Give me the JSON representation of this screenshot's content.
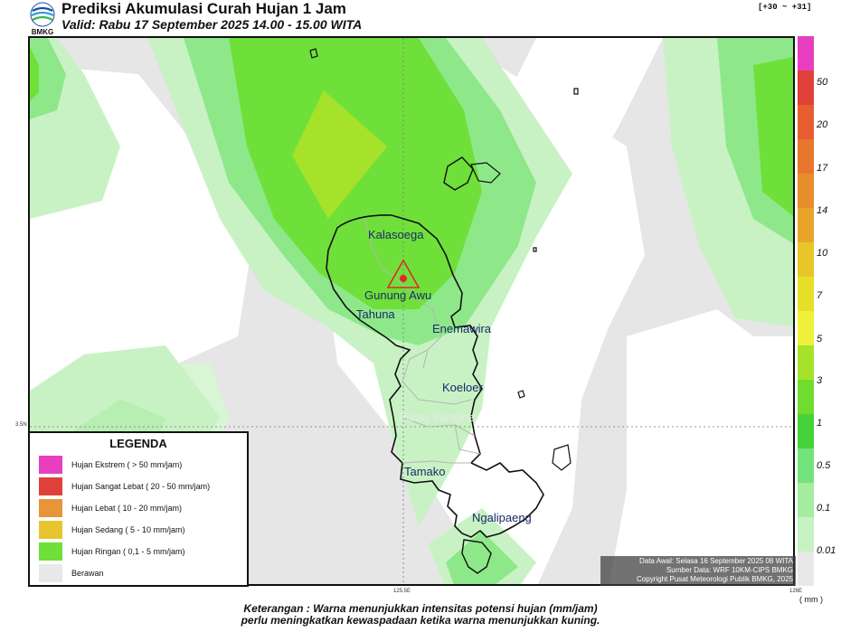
{
  "header": {
    "title": "Prediksi Akumulasi Curah Hujan 1 Jam",
    "valid": "Valid: Rabu 17 September 2025 14.00 - 15.00 WITA",
    "logo_text": "BMKG",
    "tz_offset": "[+30 ~ +31]"
  },
  "map": {
    "places": [
      {
        "name": "Kalasoega",
        "color": "#1a2a6a"
      },
      {
        "name": "Gunung Awu",
        "color": "#1a2a6a"
      },
      {
        "name": "Tahuna",
        "color": "#1a2a6a"
      },
      {
        "name": "Enemawira",
        "color": "#1a2a6a"
      },
      {
        "name": "Koeloer",
        "color": "#1a2a6a"
      },
      {
        "name": "Pulau Sangihe",
        "color": "#e8e8e8"
      },
      {
        "name": "Tamako",
        "color": "#1a2a6a"
      },
      {
        "name": "Ngalipaeng",
        "color": "#1a2a6a"
      }
    ],
    "lat_label": "3.5N",
    "lon_labels": [
      "125.5E",
      "126E"
    ],
    "volcano_icon": "volcano-triangle-icon"
  },
  "colorbar": {
    "labels": [
      "50",
      "20",
      "17",
      "14",
      "10",
      "7",
      "5",
      "3",
      "1",
      "0.5",
      "0.1",
      "0.01"
    ],
    "unit": "( mm )",
    "colors": [
      "#e83fc0",
      "#e0403a",
      "#e85e30",
      "#e8762d",
      "#e88d2c",
      "#e8a52a",
      "#e8c528",
      "#e8e028",
      "#f0f03a",
      "#a6e22a",
      "#6fdc2e",
      "#46d23a",
      "#72e37a",
      "#a4ec9e",
      "#c8f2c4",
      "#e8e8e8"
    ]
  },
  "legend": {
    "title": "LEGENDA",
    "items": [
      {
        "label": "Hujan Ekstrem ( > 50 mm/jam)",
        "color": "#e83fc0"
      },
      {
        "label": "Hujan Sangat Lebat ( 20 - 50 mm/jam)",
        "color": "#e0403a"
      },
      {
        "label": "Hujan Lebat ( 10 - 20 mm/jam)",
        "color": "#e8943a"
      },
      {
        "label": "Hujan Sedang ( 5 - 10 mm/jam)",
        "color": "#e8c52e"
      },
      {
        "label": "Hujan Ringan ( 0,1 - 5 mm/jam)",
        "color": "#6fe03a"
      },
      {
        "label": "Berawan",
        "color": "#e8e8e8"
      }
    ]
  },
  "info": {
    "line1": "Data Awal: Selasa 16 September 2025 08 WITA",
    "line2": "Sumber Data: WRF 10KM-CIPS BMKG",
    "line3": "Copyright Pusat Meteorologi Publik BMKG, 2025"
  },
  "footer": {
    "line1": "Keterangan : Warna menunjukkan intensitas potensi hujan (mm/jam)",
    "line2": "perlu meningkatkan kewaspadaan ketika warna menunjukkan kuning."
  }
}
